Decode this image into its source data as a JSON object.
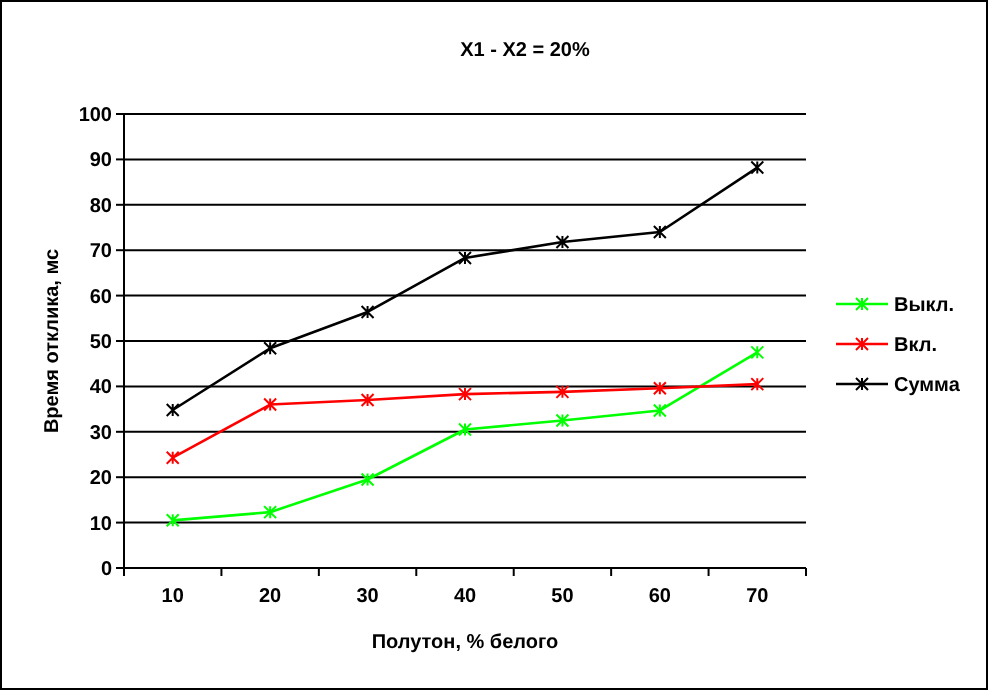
{
  "chart_data": {
    "type": "line",
    "title": "X1 - X2 = 20%",
    "xlabel": "Полутон, % белого",
    "ylabel": "Время отклика, мс",
    "categories": [
      "10",
      "20",
      "30",
      "40",
      "50",
      "60",
      "70"
    ],
    "series": [
      {
        "name": "Выкл.",
        "color": "#00ff00",
        "values": [
          10.5,
          12.3,
          19.5,
          30.5,
          32.5,
          34.7,
          47.5
        ]
      },
      {
        "name": "Вкл.",
        "color": "#ff0000",
        "values": [
          24.3,
          36,
          37,
          38.3,
          38.8,
          39.6,
          40.5
        ]
      },
      {
        "name": "Сумма",
        "color": "#000000",
        "values": [
          34.8,
          48.4,
          56.4,
          68.3,
          71.8,
          74,
          88.2
        ]
      }
    ],
    "ylim": [
      0,
      100
    ],
    "yticks": [
      0,
      10,
      20,
      30,
      40,
      50,
      60,
      70,
      80,
      90,
      100
    ],
    "grid": "y",
    "legend": "right",
    "marker": "cross",
    "line_style": "solid"
  }
}
